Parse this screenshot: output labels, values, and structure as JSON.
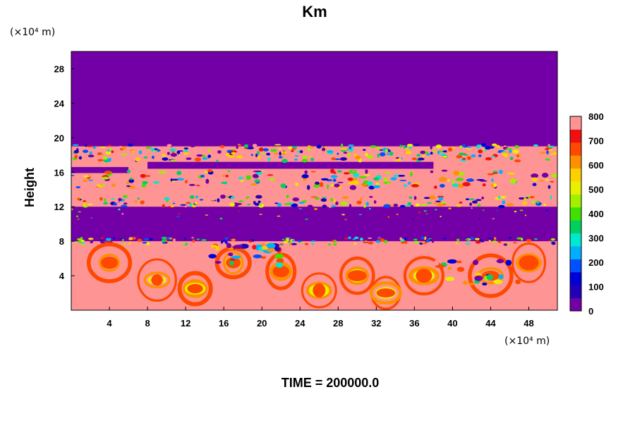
{
  "chart_data": {
    "type": "heatmap",
    "title": "Km",
    "ylabel": "Height",
    "xlabel": "",
    "x_unit": "(×10⁴ m)",
    "y_unit": "(×10⁴ m)",
    "footer": "TIME = 200000.0",
    "xlim": [
      0,
      51
    ],
    "ylim": [
      0,
      30
    ],
    "x_ticks": [
      4,
      8,
      12,
      16,
      20,
      24,
      28,
      32,
      36,
      40,
      44,
      48
    ],
    "y_ticks": [
      4,
      8,
      12,
      16,
      20,
      24,
      28
    ],
    "x_tick_labels": [
      "4",
      "8",
      "12",
      "16",
      "20",
      "24",
      "28",
      "32",
      "36",
      "40",
      "44",
      "48"
    ],
    "y_tick_labels": [
      "4",
      "8",
      "12",
      "16",
      "20",
      "24",
      "28"
    ],
    "colorbar": {
      "min": 0,
      "max": 800,
      "ticks": [
        0,
        100,
        200,
        300,
        400,
        500,
        600,
        700,
        800
      ],
      "tick_labels": [
        "0",
        "100",
        "200",
        "300",
        "400",
        "500",
        "600",
        "700",
        "800"
      ]
    },
    "layers": [
      {
        "from": 0,
        "to": 8,
        "typical_value": 800,
        "note": "turbulent convective boundary layer with eddies"
      },
      {
        "from": 8,
        "to": 12,
        "typical_value": 0
      },
      {
        "from": 12,
        "to": 19,
        "typical_value": 800,
        "note": "patchy layer with quiescent band near 16–17"
      },
      {
        "from": 19,
        "to": 30,
        "typical_value": 0
      }
    ]
  },
  "colors": {
    "background": "#7300a6",
    "scale": [
      "#7300a6",
      "#2200b8",
      "#0000d8",
      "#0050ff",
      "#00b0ff",
      "#00e8d0",
      "#00d060",
      "#40e000",
      "#a0f000",
      "#e8f000",
      "#ffd000",
      "#ff9000",
      "#ff4800",
      "#f01010",
      "#ff9494"
    ]
  }
}
